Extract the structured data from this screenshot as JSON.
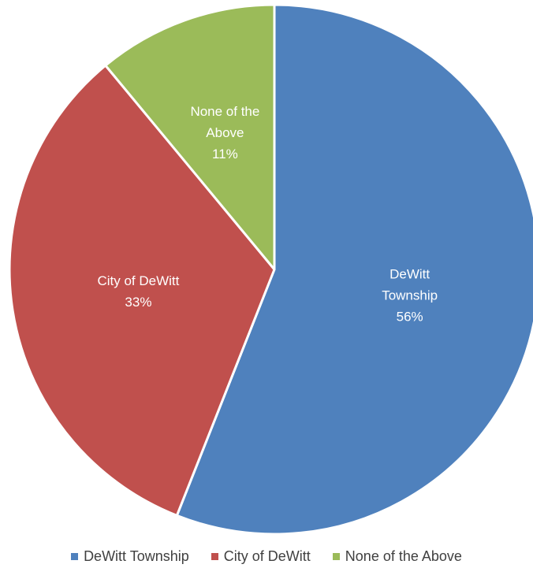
{
  "chart_data": {
    "type": "pie",
    "categories": [
      "DeWitt Township",
      "City of DeWitt",
      "None of the Above"
    ],
    "values": [
      56,
      33,
      11
    ],
    "unit": "%",
    "colors": [
      "#4F81BD",
      "#C0504D",
      "#9BBB59"
    ],
    "slice_labels": [
      [
        "DeWitt",
        "Township",
        "56%"
      ],
      [
        "City of DeWitt",
        "33%"
      ],
      [
        "None of the",
        "Above",
        "11%"
      ]
    ],
    "legend": {
      "position": "bottom",
      "entries": [
        "DeWitt Township",
        "City of DeWitt",
        "None of the Above"
      ]
    },
    "start_angle": "12 o'clock",
    "direction": "clockwise"
  }
}
